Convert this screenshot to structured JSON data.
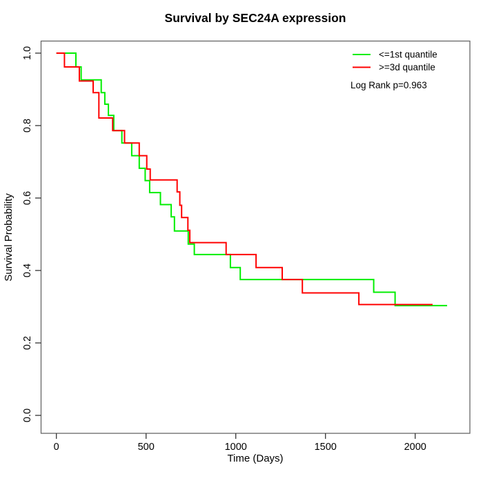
{
  "chart_data": {
    "type": "line",
    "variant": "kaplan-meier-step",
    "title": "Survival by SEC24A expression",
    "xlabel": "Time (Days)",
    "ylabel": "Survival Probability",
    "xlim": [
      0,
      2300
    ],
    "ylim": [
      0.0,
      1.0
    ],
    "grid": false,
    "x_ticks": {
      "labels": [
        "0",
        "500",
        "1000",
        "1500",
        "2000"
      ],
      "values": [
        0,
        500,
        1000,
        1500,
        2000
      ]
    },
    "y_ticks": {
      "labels": [
        "0.0",
        "0.2",
        "0.4",
        "0.6",
        "0.8",
        "1.0"
      ],
      "values": [
        0,
        0.2,
        0.4,
        0.6,
        0.8,
        1.0
      ]
    },
    "legend": {
      "position": "top-right",
      "note": "Log Rank p=0.963"
    },
    "series": [
      {
        "name": "<=1st quantile",
        "color": "#00ee00",
        "end_time": 2178,
        "points": [
          [
            0,
            1.0
          ],
          [
            109,
            0.962
          ],
          [
            138,
            0.926
          ],
          [
            250,
            0.891
          ],
          [
            270,
            0.859
          ],
          [
            290,
            0.828
          ],
          [
            320,
            0.786
          ],
          [
            365,
            0.752
          ],
          [
            420,
            0.717
          ],
          [
            462,
            0.682
          ],
          [
            495,
            0.648
          ],
          [
            520,
            0.615
          ],
          [
            580,
            0.582
          ],
          [
            640,
            0.548
          ],
          [
            658,
            0.509
          ],
          [
            735,
            0.473
          ],
          [
            769,
            0.444
          ],
          [
            970,
            0.408
          ],
          [
            1025,
            0.375
          ],
          [
            1769,
            0.34
          ],
          [
            1888,
            0.303
          ]
        ]
      },
      {
        "name": ">=3d quantile",
        "color": "#ff0000",
        "end_time": 2097,
        "points": [
          [
            0,
            1.0
          ],
          [
            45,
            0.962
          ],
          [
            128,
            0.923
          ],
          [
            205,
            0.891
          ],
          [
            237,
            0.821
          ],
          [
            314,
            0.786
          ],
          [
            380,
            0.752
          ],
          [
            462,
            0.717
          ],
          [
            504,
            0.68
          ],
          [
            523,
            0.65
          ],
          [
            673,
            0.617
          ],
          [
            688,
            0.58
          ],
          [
            698,
            0.546
          ],
          [
            733,
            0.511
          ],
          [
            744,
            0.477
          ],
          [
            946,
            0.444
          ],
          [
            1113,
            0.408
          ],
          [
            1259,
            0.375
          ],
          [
            1371,
            0.338
          ],
          [
            1686,
            0.306
          ]
        ]
      }
    ]
  }
}
